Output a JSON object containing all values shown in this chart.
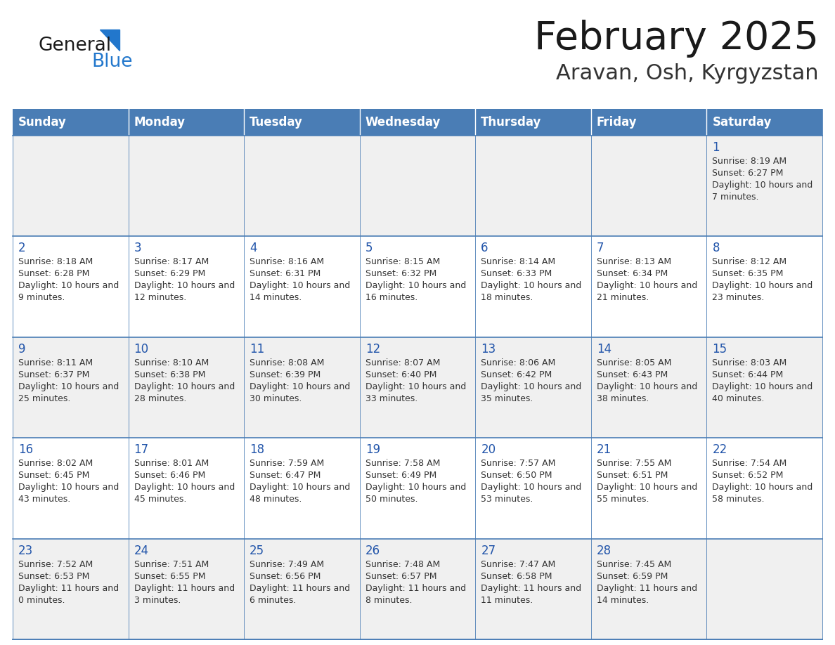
{
  "title": "February 2025",
  "subtitle": "Aravan, Osh, Kyrgyzstan",
  "days_of_week": [
    "Sunday",
    "Monday",
    "Tuesday",
    "Wednesday",
    "Thursday",
    "Friday",
    "Saturday"
  ],
  "header_bg": "#4a7db5",
  "header_text_color": "#ffffff",
  "cell_bg_odd": "#f0f0f0",
  "cell_bg_even": "#ffffff",
  "cell_border_color": "#4a7db5",
  "title_color": "#1a1a1a",
  "subtitle_color": "#333333",
  "day_num_color": "#2255aa",
  "cell_text_color": "#333333",
  "logo_general_color": "#1a1a1a",
  "logo_blue_color": "#2277cc",
  "calendar_data": [
    [
      null,
      null,
      null,
      null,
      null,
      null,
      {
        "day": 1,
        "sunrise": "8:19 AM",
        "sunset": "6:27 PM",
        "daylight": "10 hours and 7 minutes."
      }
    ],
    [
      {
        "day": 2,
        "sunrise": "8:18 AM",
        "sunset": "6:28 PM",
        "daylight": "10 hours and 9 minutes."
      },
      {
        "day": 3,
        "sunrise": "8:17 AM",
        "sunset": "6:29 PM",
        "daylight": "10 hours and 12 minutes."
      },
      {
        "day": 4,
        "sunrise": "8:16 AM",
        "sunset": "6:31 PM",
        "daylight": "10 hours and 14 minutes."
      },
      {
        "day": 5,
        "sunrise": "8:15 AM",
        "sunset": "6:32 PM",
        "daylight": "10 hours and 16 minutes."
      },
      {
        "day": 6,
        "sunrise": "8:14 AM",
        "sunset": "6:33 PM",
        "daylight": "10 hours and 18 minutes."
      },
      {
        "day": 7,
        "sunrise": "8:13 AM",
        "sunset": "6:34 PM",
        "daylight": "10 hours and 21 minutes."
      },
      {
        "day": 8,
        "sunrise": "8:12 AM",
        "sunset": "6:35 PM",
        "daylight": "10 hours and 23 minutes."
      }
    ],
    [
      {
        "day": 9,
        "sunrise": "8:11 AM",
        "sunset": "6:37 PM",
        "daylight": "10 hours and 25 minutes."
      },
      {
        "day": 10,
        "sunrise": "8:10 AM",
        "sunset": "6:38 PM",
        "daylight": "10 hours and 28 minutes."
      },
      {
        "day": 11,
        "sunrise": "8:08 AM",
        "sunset": "6:39 PM",
        "daylight": "10 hours and 30 minutes."
      },
      {
        "day": 12,
        "sunrise": "8:07 AM",
        "sunset": "6:40 PM",
        "daylight": "10 hours and 33 minutes."
      },
      {
        "day": 13,
        "sunrise": "8:06 AM",
        "sunset": "6:42 PM",
        "daylight": "10 hours and 35 minutes."
      },
      {
        "day": 14,
        "sunrise": "8:05 AM",
        "sunset": "6:43 PM",
        "daylight": "10 hours and 38 minutes."
      },
      {
        "day": 15,
        "sunrise": "8:03 AM",
        "sunset": "6:44 PM",
        "daylight": "10 hours and 40 minutes."
      }
    ],
    [
      {
        "day": 16,
        "sunrise": "8:02 AM",
        "sunset": "6:45 PM",
        "daylight": "10 hours and 43 minutes."
      },
      {
        "day": 17,
        "sunrise": "8:01 AM",
        "sunset": "6:46 PM",
        "daylight": "10 hours and 45 minutes."
      },
      {
        "day": 18,
        "sunrise": "7:59 AM",
        "sunset": "6:47 PM",
        "daylight": "10 hours and 48 minutes."
      },
      {
        "day": 19,
        "sunrise": "7:58 AM",
        "sunset": "6:49 PM",
        "daylight": "10 hours and 50 minutes."
      },
      {
        "day": 20,
        "sunrise": "7:57 AM",
        "sunset": "6:50 PM",
        "daylight": "10 hours and 53 minutes."
      },
      {
        "day": 21,
        "sunrise": "7:55 AM",
        "sunset": "6:51 PM",
        "daylight": "10 hours and 55 minutes."
      },
      {
        "day": 22,
        "sunrise": "7:54 AM",
        "sunset": "6:52 PM",
        "daylight": "10 hours and 58 minutes."
      }
    ],
    [
      {
        "day": 23,
        "sunrise": "7:52 AM",
        "sunset": "6:53 PM",
        "daylight": "11 hours and 0 minutes."
      },
      {
        "day": 24,
        "sunrise": "7:51 AM",
        "sunset": "6:55 PM",
        "daylight": "11 hours and 3 minutes."
      },
      {
        "day": 25,
        "sunrise": "7:49 AM",
        "sunset": "6:56 PM",
        "daylight": "11 hours and 6 minutes."
      },
      {
        "day": 26,
        "sunrise": "7:48 AM",
        "sunset": "6:57 PM",
        "daylight": "11 hours and 8 minutes."
      },
      {
        "day": 27,
        "sunrise": "7:47 AM",
        "sunset": "6:58 PM",
        "daylight": "11 hours and 11 minutes."
      },
      {
        "day": 28,
        "sunrise": "7:45 AM",
        "sunset": "6:59 PM",
        "daylight": "11 hours and 14 minutes."
      },
      null
    ]
  ]
}
